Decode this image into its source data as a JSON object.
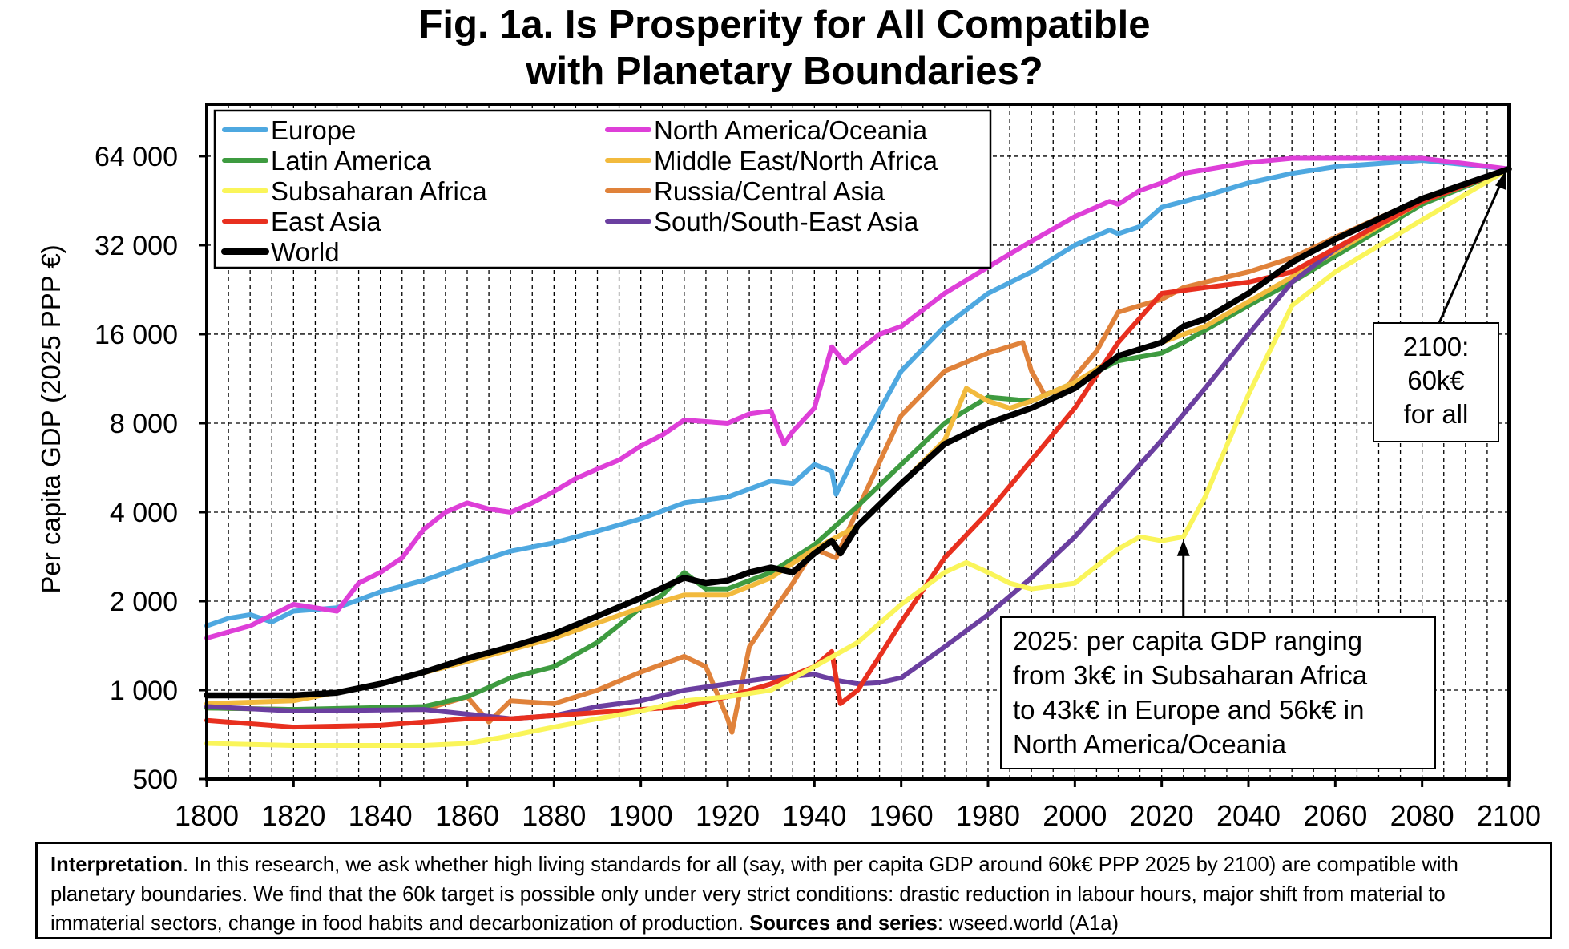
{
  "title": {
    "line1": "Fig. 1a. Is Prosperity for All Compatible",
    "line2": "with Planetary Boundaries?"
  },
  "chart_data": {
    "type": "line",
    "title": "Fig. 1a. Is Prosperity for All Compatible with Planetary Boundaries?",
    "xlabel": "",
    "ylabel": "Per capita GDP (2025 PPP €)",
    "y_scale": "log2",
    "xlim": [
      1800,
      2100
    ],
    "ylim": [
      500,
      96000
    ],
    "grid": true,
    "legend_position": "top-left",
    "x_ticks": [
      1800,
      1820,
      1840,
      1860,
      1880,
      1900,
      1920,
      1940,
      1960,
      1980,
      2000,
      2020,
      2040,
      2060,
      2080,
      2100
    ],
    "y_ticks": [
      {
        "value": 500,
        "label": "500"
      },
      {
        "value": 1000,
        "label": "1 000"
      },
      {
        "value": 2000,
        "label": "2 000"
      },
      {
        "value": 4000,
        "label": "4 000"
      },
      {
        "value": 8000,
        "label": "8 000"
      },
      {
        "value": 16000,
        "label": "16 000"
      },
      {
        "value": 32000,
        "label": "32 000"
      },
      {
        "value": 64000,
        "label": "64 000"
      }
    ],
    "series": [
      {
        "name": "Russia/Central Asia",
        "color": "#E0823A",
        "x": [
          1800,
          1820,
          1850,
          1860,
          1865,
          1870,
          1880,
          1890,
          1900,
          1910,
          1915,
          1920,
          1921,
          1925,
          1930,
          1935,
          1940,
          1945,
          1950,
          1960,
          1970,
          1980,
          1988,
          1990,
          1993,
          1998,
          2000,
          2005,
          2010,
          2015,
          2020,
          2025,
          2030,
          2040,
          2050,
          2060,
          2080,
          2100
        ],
        "y": [
          870,
          860,
          860,
          950,
          780,
          920,
          900,
          1000,
          1150,
          1300,
          1200,
          800,
          720,
          1400,
          1800,
          2300,
          3000,
          2800,
          4100,
          8500,
          12000,
          13800,
          15000,
          12000,
          10000,
          10500,
          11500,
          14000,
          19000,
          20000,
          21000,
          23000,
          24000,
          26000,
          29000,
          34000,
          46000,
          58000
        ]
      },
      {
        "name": "Latin America",
        "color": "#3E9B40",
        "x": [
          1800,
          1820,
          1850,
          1860,
          1870,
          1880,
          1890,
          1900,
          1905,
          1910,
          1915,
          1920,
          1930,
          1940,
          1950,
          1960,
          1970,
          1980,
          1990,
          2000,
          2010,
          2020,
          2025,
          2040,
          2050,
          2080,
          2100
        ],
        "y": [
          870,
          860,
          880,
          950,
          1100,
          1200,
          1450,
          1900,
          2100,
          2500,
          2200,
          2200,
          2500,
          3100,
          4200,
          5800,
          8000,
          9800,
          9500,
          11000,
          13000,
          13800,
          15000,
          20000,
          24000,
          44000,
          58000
        ]
      },
      {
        "name": "Middle East/North Africa",
        "color": "#F2BA3D",
        "x": [
          1800,
          1820,
          1840,
          1860,
          1880,
          1900,
          1910,
          1920,
          1930,
          1940,
          1950,
          1960,
          1970,
          1975,
          1980,
          1985,
          1990,
          2000,
          2010,
          2020,
          2030,
          2050,
          2080,
          2100
        ],
        "y": [
          900,
          920,
          1050,
          1250,
          1500,
          1900,
          2100,
          2100,
          2400,
          3000,
          3600,
          5000,
          7000,
          10500,
          9500,
          9000,
          9500,
          11000,
          13500,
          15000,
          17000,
          25000,
          45000,
          58000
        ]
      },
      {
        "name": "South/South-East Asia",
        "color": "#6B3FA0",
        "x": [
          1800,
          1820,
          1850,
          1870,
          1880,
          1890,
          1900,
          1910,
          1920,
          1930,
          1940,
          1945,
          1950,
          1955,
          1960,
          1970,
          1980,
          1990,
          2000,
          2010,
          2020,
          2030,
          2040,
          2050,
          2060,
          2080,
          2100
        ],
        "y": [
          880,
          850,
          860,
          800,
          820,
          880,
          920,
          1000,
          1050,
          1100,
          1130,
          1080,
          1050,
          1060,
          1100,
          1400,
          1800,
          2400,
          3300,
          4800,
          7000,
          10500,
          16000,
          24000,
          31000,
          46000,
          58000
        ]
      },
      {
        "name": "East Asia",
        "color": "#E8301F",
        "x": [
          1800,
          1820,
          1840,
          1860,
          1870,
          1880,
          1890,
          1900,
          1910,
          1920,
          1930,
          1940,
          1944,
          1946,
          1950,
          1955,
          1960,
          1970,
          1980,
          1990,
          2000,
          2010,
          2020,
          2025,
          2030,
          2040,
          2050,
          2080,
          2100
        ],
        "y": [
          790,
          750,
          760,
          800,
          800,
          820,
          840,
          860,
          880,
          950,
          1050,
          1200,
          1350,
          900,
          1000,
          1300,
          1700,
          2800,
          4000,
          6000,
          9000,
          15000,
          22000,
          22500,
          23000,
          24000,
          26000,
          45000,
          58000
        ]
      },
      {
        "name": "Subsaharan Africa",
        "color": "#FAF55A",
        "x": [
          1800,
          1820,
          1840,
          1850,
          1860,
          1870,
          1880,
          1890,
          1900,
          1910,
          1920,
          1930,
          1940,
          1950,
          1960,
          1970,
          1975,
          1980,
          1985,
          1990,
          2000,
          2010,
          2015,
          2020,
          2025,
          2030,
          2040,
          2050,
          2060,
          2080,
          2100
        ],
        "y": [
          660,
          650,
          650,
          650,
          660,
          700,
          750,
          800,
          850,
          920,
          950,
          1000,
          1200,
          1450,
          1950,
          2500,
          2700,
          2500,
          2300,
          2200,
          2300,
          3000,
          3300,
          3200,
          3300,
          4500,
          10000,
          20000,
          26000,
          39000,
          58000
        ]
      },
      {
        "name": "Europe",
        "color": "#4EA8E0",
        "x": [
          1800,
          1805,
          1810,
          1815,
          1820,
          1830,
          1840,
          1850,
          1860,
          1870,
          1880,
          1890,
          1900,
          1910,
          1915,
          1920,
          1930,
          1935,
          1940,
          1944,
          1945,
          1950,
          1960,
          1970,
          1980,
          1990,
          2000,
          2008,
          2010,
          2015,
          2020,
          2030,
          2040,
          2050,
          2060,
          2080,
          2100
        ],
        "y": [
          1650,
          1750,
          1800,
          1700,
          1850,
          1900,
          2150,
          2350,
          2650,
          2950,
          3150,
          3450,
          3800,
          4300,
          4400,
          4500,
          5100,
          5000,
          5800,
          5500,
          4600,
          6500,
          12000,
          17000,
          22000,
          26000,
          32000,
          36000,
          35000,
          37000,
          43000,
          47000,
          52000,
          56000,
          59000,
          62000,
          58000
        ]
      },
      {
        "name": "North America/Oceania",
        "color": "#DE3FD8",
        "x": [
          1800,
          1810,
          1820,
          1825,
          1830,
          1835,
          1840,
          1845,
          1850,
          1855,
          1860,
          1865,
          1870,
          1875,
          1880,
          1885,
          1890,
          1895,
          1900,
          1905,
          1910,
          1915,
          1920,
          1925,
          1930,
          1933,
          1935,
          1940,
          1944,
          1947,
          1950,
          1955,
          1960,
          1970,
          1980,
          1990,
          2000,
          2008,
          2010,
          2015,
          2020,
          2025,
          2040,
          2050,
          2080,
          2100
        ],
        "y": [
          1500,
          1650,
          1950,
          1900,
          1850,
          2300,
          2500,
          2800,
          3500,
          4000,
          4300,
          4100,
          4000,
          4300,
          4700,
          5200,
          5600,
          6000,
          6700,
          7300,
          8200,
          8100,
          8000,
          8600,
          8800,
          6800,
          7500,
          9000,
          14500,
          12800,
          14000,
          16000,
          17000,
          22000,
          27000,
          33000,
          40000,
          45000,
          44000,
          49000,
          52000,
          56000,
          61000,
          63000,
          63000,
          58000
        ]
      },
      {
        "name": "World",
        "color": "#000000",
        "x": [
          1800,
          1810,
          1820,
          1830,
          1840,
          1850,
          1860,
          1870,
          1880,
          1890,
          1900,
          1910,
          1915,
          1920,
          1925,
          1930,
          1935,
          1940,
          1944,
          1946,
          1950,
          1960,
          1970,
          1980,
          1990,
          2000,
          2010,
          2020,
          2025,
          2030,
          2040,
          2050,
          2060,
          2080,
          2100
        ],
        "y": [
          960,
          960,
          960,
          980,
          1050,
          1150,
          1280,
          1400,
          1550,
          1780,
          2050,
          2400,
          2300,
          2350,
          2500,
          2600,
          2500,
          2900,
          3200,
          2900,
          3600,
          5000,
          6800,
          8000,
          9000,
          10500,
          13500,
          15000,
          17000,
          18000,
          22000,
          28000,
          33500,
          46000,
          58000
        ]
      }
    ],
    "legend": [
      "Europe",
      "North America/Oceania",
      "Latin America",
      "Middle East/North Africa",
      "Subsaharan Africa",
      "Russia/Central Asia",
      "East Asia",
      "South/South-East Asia",
      "World"
    ],
    "annotations": [
      {
        "lines": [
          "2100:",
          "60k€",
          "for all"
        ],
        "points_to": {
          "x": 2100,
          "y": 60000
        }
      },
      {
        "lines": [
          "2025: per capita GDP ranging",
          "from 3k€ in Subsaharan Africa",
          "to 43k€ in Europe and 56k€ in",
          "North America/Oceania"
        ],
        "points_to": {
          "x": 2025,
          "y": 3300
        }
      }
    ]
  },
  "interpretation": {
    "label": "Interpretation",
    "text": ". In this research, we ask whether high living standards for all (say, with per capita GDP around 60k€ PPP 2025 by 2100) are compatible with planetary boundaries. We find that the 60k target is possible only under very strict conditions: drastic reduction in labour hours, major shift from material to immaterial sectors, change in food habits and decarbonization of production.",
    "sources_label": "Sources and series",
    "sources_text": ": wseed.world (A1a)"
  }
}
